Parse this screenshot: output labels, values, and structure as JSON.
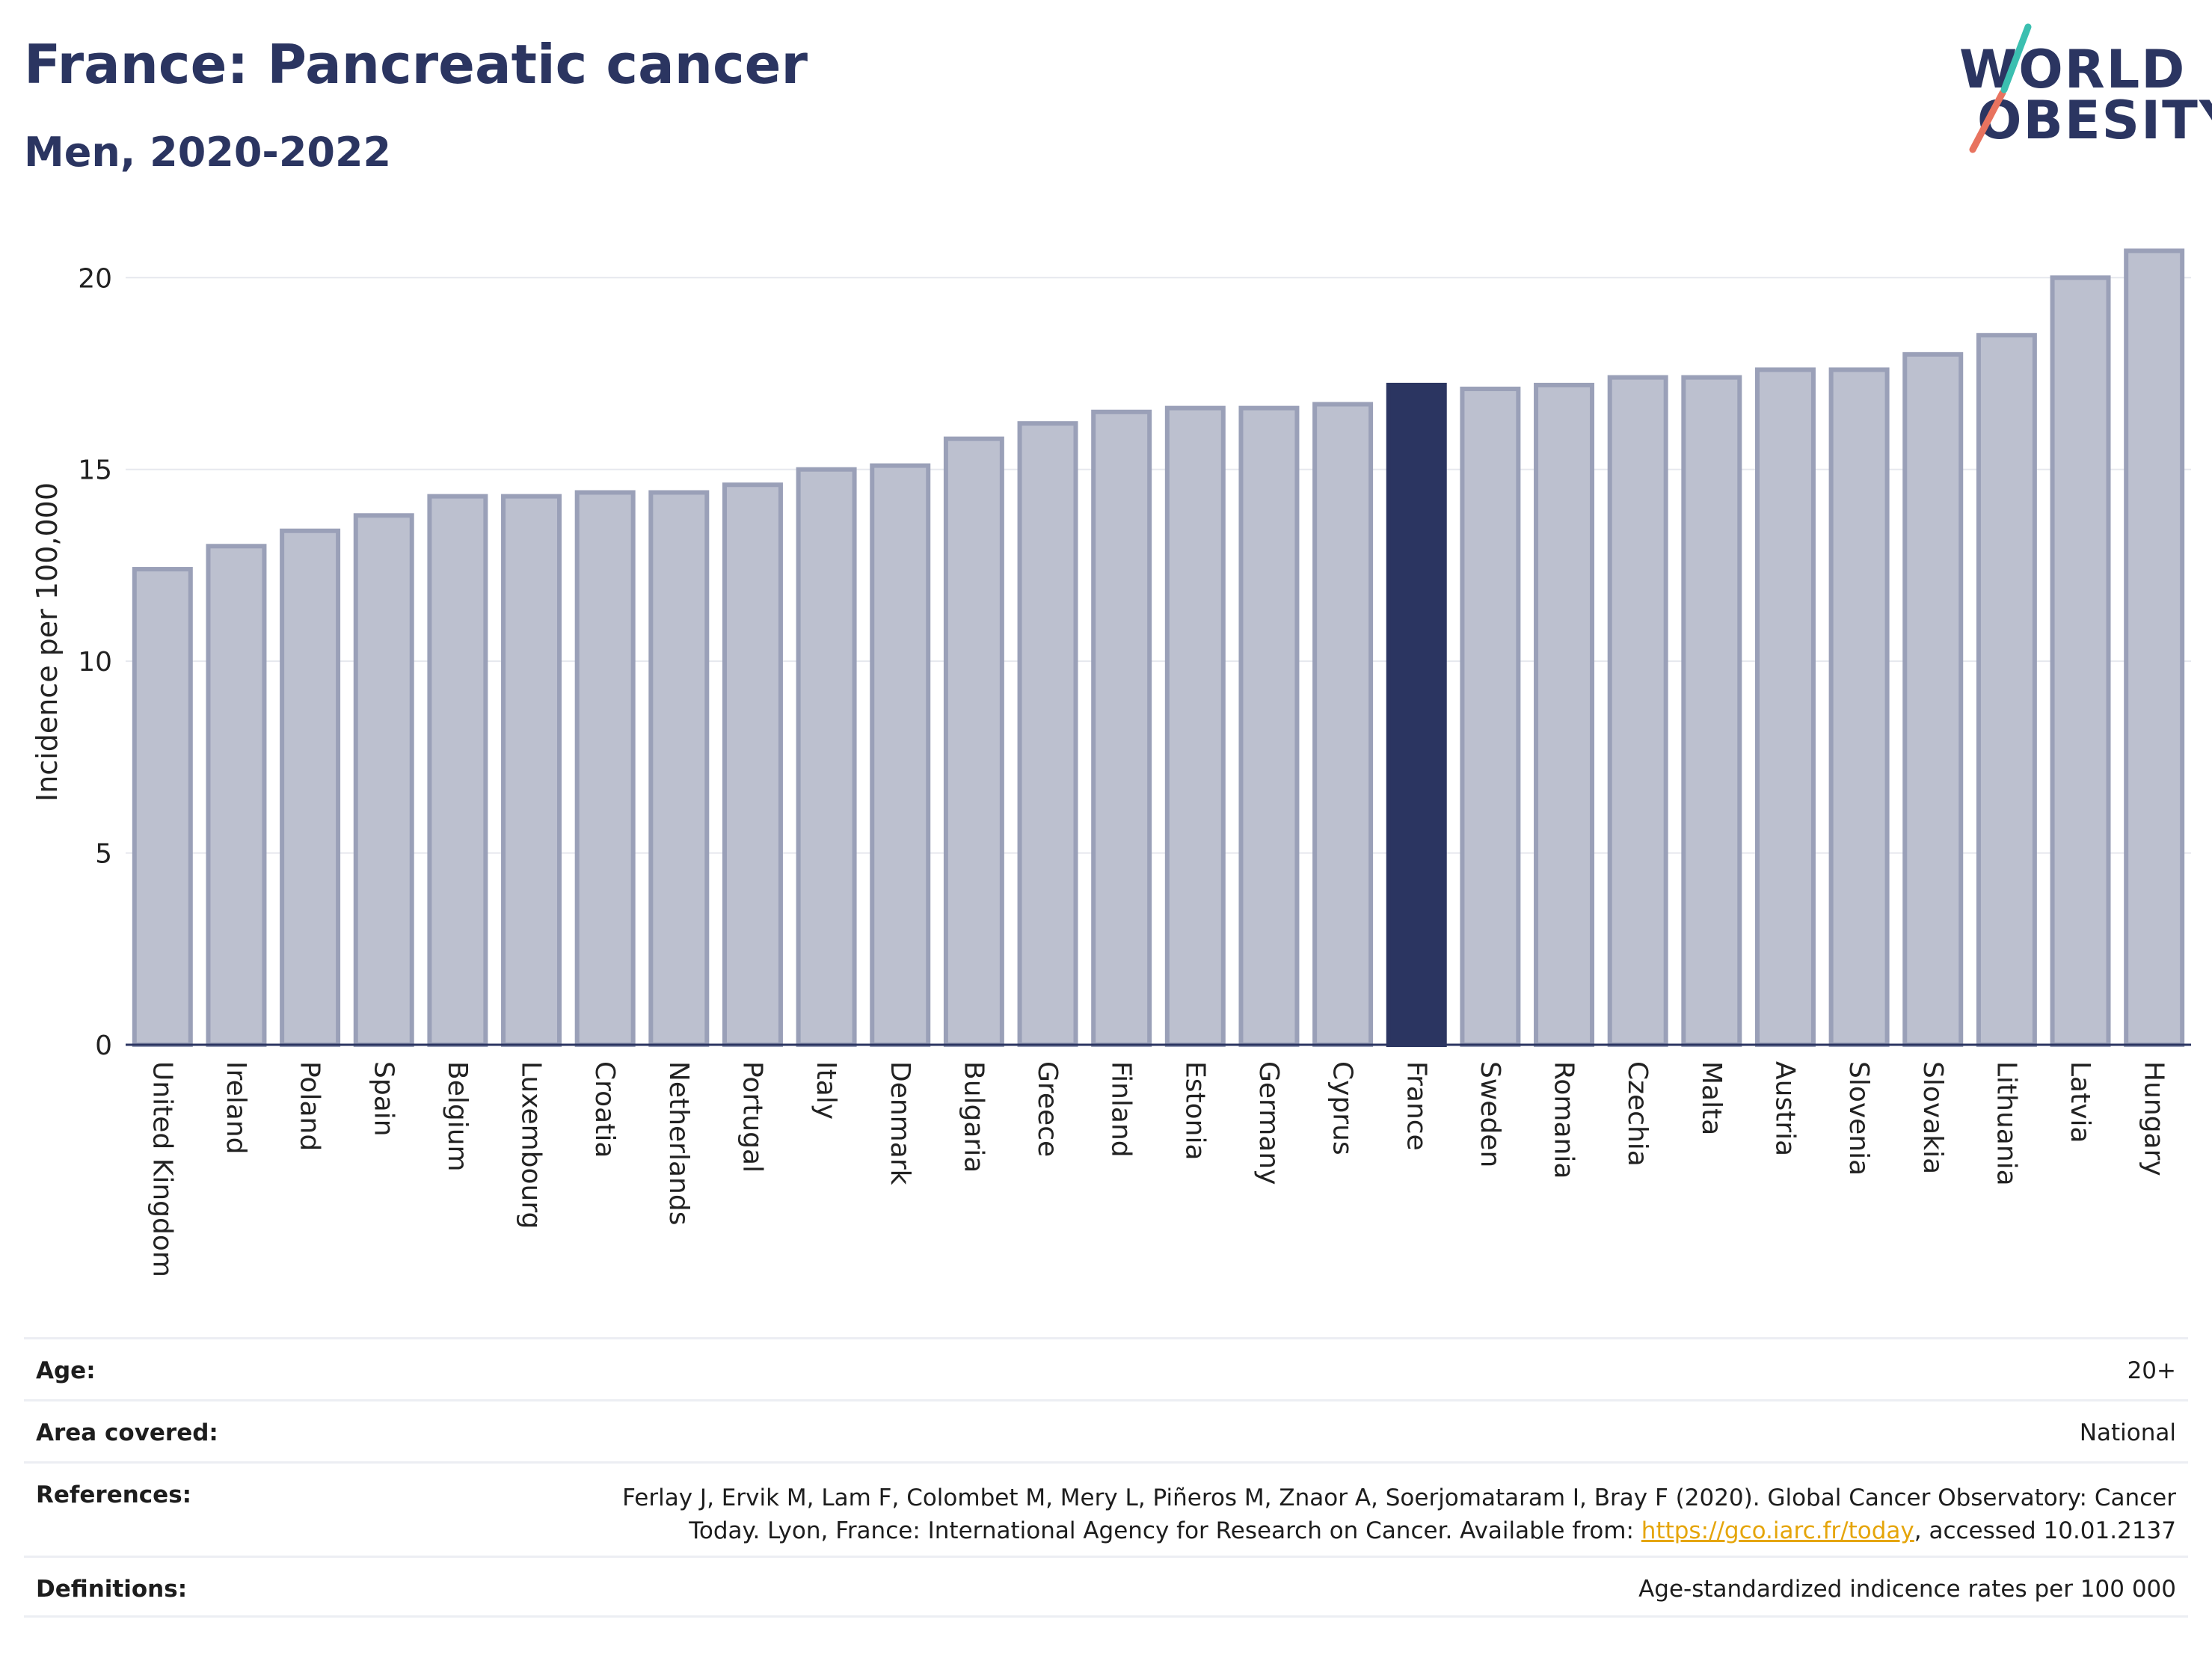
{
  "header": {
    "title": "France: Pancreatic cancer",
    "subtitle": "Men, 2020-2022"
  },
  "logo": {
    "line1": "WORLD",
    "line2": "OBESITY"
  },
  "chart_data": {
    "type": "bar",
    "ylabel": "Incidence per 100,000",
    "xlabel": "",
    "ylim": [
      0,
      21
    ],
    "yticks": [
      0,
      5,
      10,
      15,
      20
    ],
    "grid": true,
    "highlight": "France",
    "colors": {
      "bar": "#bcc0cf",
      "bar_edge": "#9aa0b8",
      "highlight": "#2b3561",
      "grid": "#e6e8ee",
      "axis": "#2b3561"
    },
    "categories": [
      "United Kingdom",
      "Ireland",
      "Poland",
      "Spain",
      "Belgium",
      "Luxembourg",
      "Croatia",
      "Netherlands",
      "Portugal",
      "Italy",
      "Denmark",
      "Bulgaria",
      "Greece",
      "Finland",
      "Estonia",
      "Germany",
      "Cyprus",
      "France",
      "Sweden",
      "Romania",
      "Czechia",
      "Malta",
      "Austria",
      "Slovenia",
      "Slovakia",
      "Lithuania",
      "Latvia",
      "Hungary"
    ],
    "values": [
      12.4,
      13.0,
      13.4,
      13.8,
      14.3,
      14.3,
      14.4,
      14.4,
      14.6,
      15.0,
      15.1,
      15.8,
      16.2,
      16.5,
      16.6,
      16.6,
      16.7,
      17.2,
      17.1,
      17.2,
      17.4,
      17.4,
      17.6,
      17.6,
      18.0,
      18.5,
      20.0,
      20.7
    ]
  },
  "footer": {
    "age": {
      "label": "Age:",
      "value": "20+"
    },
    "area": {
      "label": "Area covered:",
      "value": "National"
    },
    "references": {
      "label": "References:",
      "line1": "Ferlay J, Ervik M, Lam F, Colombet M, Mery L, Piñeros M, Znaor A, Soerjomataram I, Bray F (2020). Global Cancer Observatory: Cancer",
      "line2_pre": "Today. Lyon, France: International Agency for Research on Cancer. Available from: ",
      "link": "https://gco.iarc.fr/today",
      "line2_post": ", accessed 10.01.2137"
    },
    "definitions": {
      "label": "Definitions:",
      "value": "Age-standardized indicence rates per 100 000"
    }
  }
}
